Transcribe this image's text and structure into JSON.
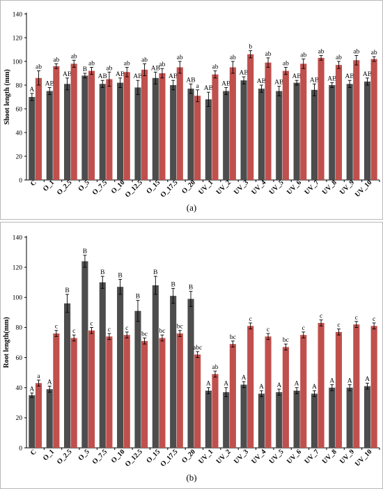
{
  "chart_data": [
    {
      "type": "bar",
      "panel_label": "(a)",
      "ylabel": "Shoot length (mm)",
      "xlabel": "",
      "ylim": [
        0,
        140
      ],
      "yticks": [
        0,
        20,
        40,
        60,
        80,
        100,
        120,
        140
      ],
      "categories": [
        "C",
        "O_1",
        "O_2.5",
        "O_5",
        "O_7.5",
        "O_10",
        "O_12.5",
        "O_15",
        "O_17.5",
        "O_20",
        "UV_1",
        "UV_2",
        "UV_3",
        "UV_4",
        "UV_5",
        "UV_6",
        "UV_7",
        "UV_8",
        "UV_9",
        "UV_10"
      ],
      "series": [
        {
          "color": "#4d4d4d",
          "values": [
            70,
            75,
            81,
            88,
            81,
            82,
            78,
            86,
            80,
            77,
            68,
            75,
            84,
            77,
            75,
            82,
            76,
            80,
            81,
            83
          ],
          "errors": [
            3,
            3,
            5,
            2,
            3,
            4,
            6,
            5,
            4,
            4,
            6,
            3,
            3,
            3,
            4,
            2,
            5,
            2,
            3,
            3
          ],
          "labels": [
            "A",
            "AB",
            "AB",
            "B",
            "AB",
            "AB",
            "AB",
            "AB",
            "AB",
            "AB",
            "AB",
            "AB",
            "AB",
            "AB",
            "AB",
            "AB",
            "AB",
            "AB",
            "AB",
            "AB"
          ]
        },
        {
          "color": "#c0504d",
          "values": [
            86,
            96,
            98,
            92,
            85,
            91,
            93,
            90,
            95,
            71,
            89,
            95,
            106,
            99,
            92,
            98,
            103,
            97,
            101,
            102
          ],
          "errors": [
            6,
            2,
            3,
            3,
            6,
            4,
            5,
            4,
            5,
            5,
            3,
            5,
            3,
            4,
            3,
            4,
            2,
            3,
            4,
            2
          ],
          "labels": [
            "ab",
            "ab",
            "ab",
            "ab",
            "ab",
            "ab",
            "ab",
            "ab",
            "ab",
            "a",
            "ab",
            "ab",
            "b",
            "ab",
            "ab",
            "ab",
            "ab",
            "ab",
            "ab",
            "ab"
          ]
        }
      ]
    },
    {
      "type": "bar",
      "panel_label": "(b)",
      "ylabel": "Root length(mm)",
      "xlabel": "",
      "ylim": [
        0,
        140
      ],
      "yticks": [
        0,
        20,
        40,
        60,
        80,
        100,
        120,
        140
      ],
      "categories": [
        "C",
        "O_1",
        "O_2.5",
        "O_5",
        "O_7.5",
        "O_10",
        "O_12.5",
        "O_15",
        "O_17.5",
        "O_20",
        "UV_1",
        "UV_2",
        "UV_3",
        "UV_4",
        "UV_5",
        "UV_6",
        "UV_7",
        "UV_8",
        "UV_9",
        "UV_10"
      ],
      "series": [
        {
          "color": "#4d4d4d",
          "values": [
            35,
            39,
            96,
            124,
            110,
            107,
            91,
            108,
            101,
            99,
            38,
            37,
            42,
            36,
            37,
            38,
            36,
            40,
            40,
            41
          ],
          "errors": [
            1.5,
            2,
            6,
            4,
            4,
            5,
            7,
            6,
            5,
            5,
            2,
            3,
            2,
            2,
            2,
            2,
            2,
            2,
            2,
            2
          ],
          "labels": [
            "A",
            "A",
            "B",
            "B",
            "B",
            "B",
            "B",
            "B",
            "B",
            "B",
            "A",
            "A",
            "A",
            "A",
            "A",
            "A",
            "A",
            "A",
            "A",
            "A"
          ]
        },
        {
          "color": "#c0504d",
          "values": [
            43,
            76,
            73,
            78,
            74,
            75,
            71,
            73,
            76,
            62,
            49,
            69,
            81,
            74,
            67,
            75,
            83,
            77,
            82,
            81
          ],
          "errors": [
            2,
            2,
            2,
            2,
            2,
            2,
            2,
            2,
            2,
            2,
            2,
            2,
            2,
            2,
            2,
            2,
            2,
            2,
            2,
            2
          ],
          "labels": [
            "a",
            "c",
            "c",
            "c",
            "c",
            "c",
            "bc",
            "bc",
            "bc",
            "abc",
            "ab",
            "bc",
            "c",
            "c",
            "bc",
            "c",
            "c",
            "c",
            "c",
            "c"
          ]
        }
      ]
    }
  ]
}
